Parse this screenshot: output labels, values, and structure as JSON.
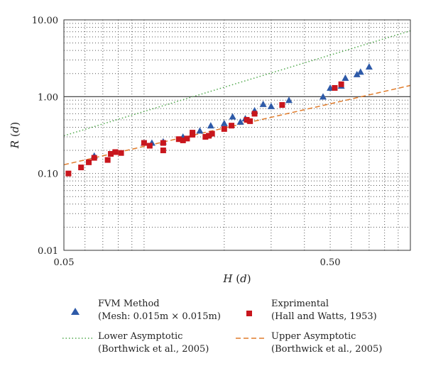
{
  "chart_data": {
    "type": "scatter",
    "xscale": "log",
    "yscale": "log",
    "xlim": [
      0.05,
      1.0
    ],
    "ylim": [
      0.01,
      10.0
    ],
    "xticks": [
      {
        "value": 0.05,
        "label": "0.05"
      },
      {
        "value": 0.5,
        "label": "0.50"
      }
    ],
    "yticks": [
      {
        "value": 10,
        "label": "10.00"
      },
      {
        "value": 1,
        "label": "1.00"
      },
      {
        "value": 0.1,
        "label": "0.10"
      },
      {
        "value": 0.01,
        "label": "0.01"
      }
    ],
    "xlabel": "H (d)",
    "ylabel": "R (d)",
    "grid": "dotted minor and major",
    "reference_line_y": 1.0,
    "series": [
      {
        "name": "FVM Method (Mesh: 0.015m × 0.015m)",
        "marker": "triangle",
        "color": "#2e5aa8",
        "x": [
          0.065,
          0.1,
          0.107,
          0.118,
          0.14,
          0.162,
          0.178,
          0.2,
          0.215,
          0.23,
          0.24,
          0.26,
          0.28,
          0.3,
          0.35,
          0.47,
          0.5,
          0.55,
          0.57,
          0.63,
          0.65,
          0.7
        ],
        "y": [
          0.17,
          0.25,
          0.25,
          0.26,
          0.3,
          0.36,
          0.42,
          0.45,
          0.55,
          0.47,
          0.52,
          0.66,
          0.8,
          0.75,
          0.9,
          1.0,
          1.3,
          1.38,
          1.75,
          1.95,
          2.1,
          2.45
        ]
      },
      {
        "name": "Exprimental (Hall and Watts, 1953)",
        "marker": "square",
        "color": "#c8161d",
        "x": [
          0.052,
          0.058,
          0.062,
          0.065,
          0.073,
          0.075,
          0.078,
          0.082,
          0.1,
          0.105,
          0.118,
          0.118,
          0.135,
          0.14,
          0.145,
          0.152,
          0.152,
          0.17,
          0.175,
          0.18,
          0.2,
          0.213,
          0.243,
          0.25,
          0.26,
          0.33,
          0.52,
          0.55
        ],
        "y": [
          0.1,
          0.12,
          0.14,
          0.16,
          0.15,
          0.18,
          0.19,
          0.185,
          0.25,
          0.23,
          0.2,
          0.25,
          0.28,
          0.27,
          0.285,
          0.32,
          0.34,
          0.3,
          0.31,
          0.33,
          0.38,
          0.42,
          0.5,
          0.48,
          0.6,
          0.78,
          1.3,
          1.45
        ]
      }
    ],
    "lines": [
      {
        "name": "Lower Asymptotic (Borthwick et al., 2005)",
        "style": "dotted",
        "color": "#4fa84b",
        "x": [
          0.05,
          1.0
        ],
        "y": [
          0.31,
          7.2
        ]
      },
      {
        "name": "Upper Asymptotic (Borthwick et al., 2005)",
        "style": "dashed",
        "color": "#e07b2a",
        "x": [
          0.05,
          1.0
        ],
        "y": [
          0.13,
          1.4
        ]
      }
    ],
    "legend": {
      "placement": "bottom",
      "items": [
        {
          "line1": "FVM Method",
          "line2": "(Mesh: 0.015m × 0.015m)"
        },
        {
          "line1": "Exprimental",
          "line2": "(Hall and Watts, 1953)"
        },
        {
          "line1": "Lower Asymptotic",
          "line2": "(Borthwick et al., 2005)"
        },
        {
          "line1": "Upper Asymptotic",
          "line2": "(Borthwick et al., 2005)"
        }
      ]
    }
  }
}
